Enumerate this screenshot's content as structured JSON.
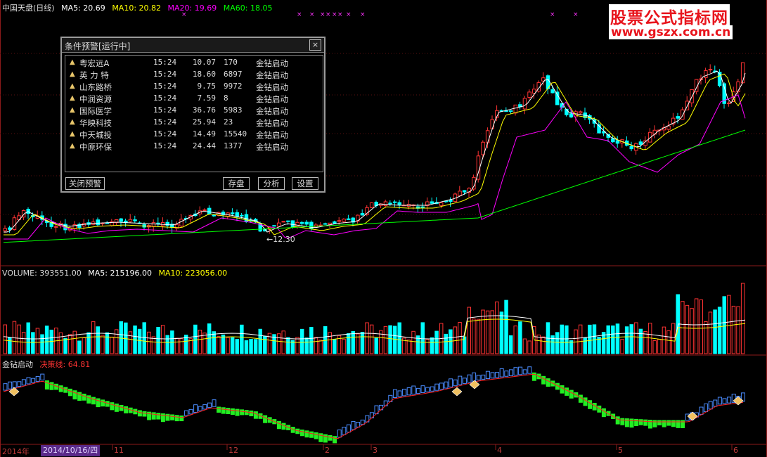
{
  "main_panel": {
    "title": "中国天盘(日线)",
    "ma5": "MA5: 20.69",
    "ma10": "MA10: 20.82",
    "ma20": "MA20: 19.69",
    "ma60": "MA60: 18.05",
    "low_label": "←12.30",
    "colors": {
      "ma5": "#ffffff",
      "ma10": "#ffff00",
      "ma20": "#ff00ff",
      "ma60": "#00ff00",
      "up": "#ff3333",
      "down": "#00ffff"
    }
  },
  "volume_panel": {
    "volume": "VOLUME: 393551.00",
    "ma5": "MA5: 215196.00",
    "ma10": "MA10: 223056.00"
  },
  "indicator_panel": {
    "name": "金钻启动",
    "line_label": "决策线: 64.81"
  },
  "dialog": {
    "title": "条件预警[运行中]",
    "close_glyph": "×",
    "rows": [
      {
        "name": "粤宏远A",
        "time": "15:24",
        "price": "10.07",
        "volume": "170",
        "signal": "金钻启动"
      },
      {
        "name": "英 力 特",
        "time": "15:24",
        "price": "18.60",
        "volume": "6897",
        "signal": "金钻启动"
      },
      {
        "name": "山东路桥",
        "time": "15:24",
        "price": "9.75",
        "volume": "9972",
        "signal": "金钻启动"
      },
      {
        "name": "中润资源",
        "time": "15:24",
        "price": "7.59",
        "volume": "8",
        "signal": "金钻启动"
      },
      {
        "name": "国际医学",
        "time": "15:24",
        "price": "36.76",
        "volume": "5983",
        "signal": "金钻启动"
      },
      {
        "name": "华映科技",
        "time": "15:24",
        "price": "25.94",
        "volume": "23",
        "signal": "金钻启动"
      },
      {
        "name": "中天城投",
        "time": "15:24",
        "price": "14.49",
        "volume": "15540",
        "signal": "金钻启动"
      },
      {
        "name": "中原环保",
        "time": "15:24",
        "price": "24.44",
        "volume": "1377",
        "signal": "金钻启动"
      }
    ],
    "buttons": {
      "close": "关闭预警",
      "save": "存盘",
      "analyze": "分析",
      "settings": "设置"
    }
  },
  "watermark": {
    "line1": "股票公式指标网",
    "line2": "www.gszx.com.cn"
  },
  "time_axis": {
    "year": "2014年",
    "selected_date": "2014/10/16/四",
    "months": [
      "11",
      "12",
      "2",
      "3",
      "4",
      "5",
      "6"
    ]
  }
}
